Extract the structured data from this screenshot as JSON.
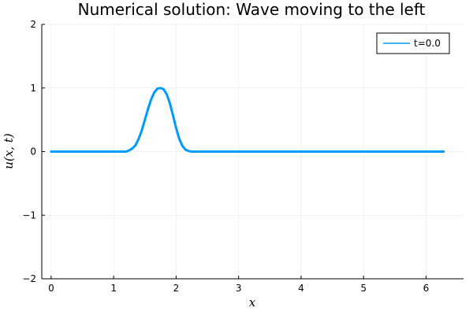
{
  "chart_data": {
    "type": "line",
    "title": "Numerical solution: Wave moving to the left",
    "xlabel": "x",
    "ylabel": "u(x, t)",
    "xlim": [
      -0.15,
      6.6
    ],
    "ylim": [
      -2,
      2
    ],
    "xticks": [
      0,
      1,
      2,
      3,
      4,
      5,
      6
    ],
    "yticks": [
      -2,
      -1,
      0,
      1,
      2
    ],
    "ytick_labels": [
      "−2",
      "−1",
      "0",
      "1",
      "2"
    ],
    "grid": true,
    "legend_position": "top-right",
    "series": [
      {
        "name": "t=0.0",
        "color": "#009af9",
        "x": [
          0.0,
          0.5,
          1.0,
          1.2,
          1.25,
          1.3,
          1.35,
          1.4,
          1.45,
          1.5,
          1.55,
          1.6,
          1.65,
          1.7,
          1.75,
          1.8,
          1.85,
          1.9,
          1.95,
          2.0,
          2.05,
          2.1,
          2.15,
          2.2,
          2.25,
          2.3,
          2.5,
          3.0,
          4.0,
          5.0,
          6.0,
          6.28
        ],
        "y": [
          0.0,
          0.0,
          0.0,
          0.0,
          0.02,
          0.05,
          0.1,
          0.2,
          0.33,
          0.5,
          0.67,
          0.82,
          0.93,
          0.99,
          1.0,
          0.98,
          0.9,
          0.76,
          0.57,
          0.37,
          0.2,
          0.09,
          0.03,
          0.01,
          0.0,
          0.0,
          0.0,
          0.0,
          0.0,
          0.0,
          0.0,
          0.0
        ]
      }
    ]
  }
}
